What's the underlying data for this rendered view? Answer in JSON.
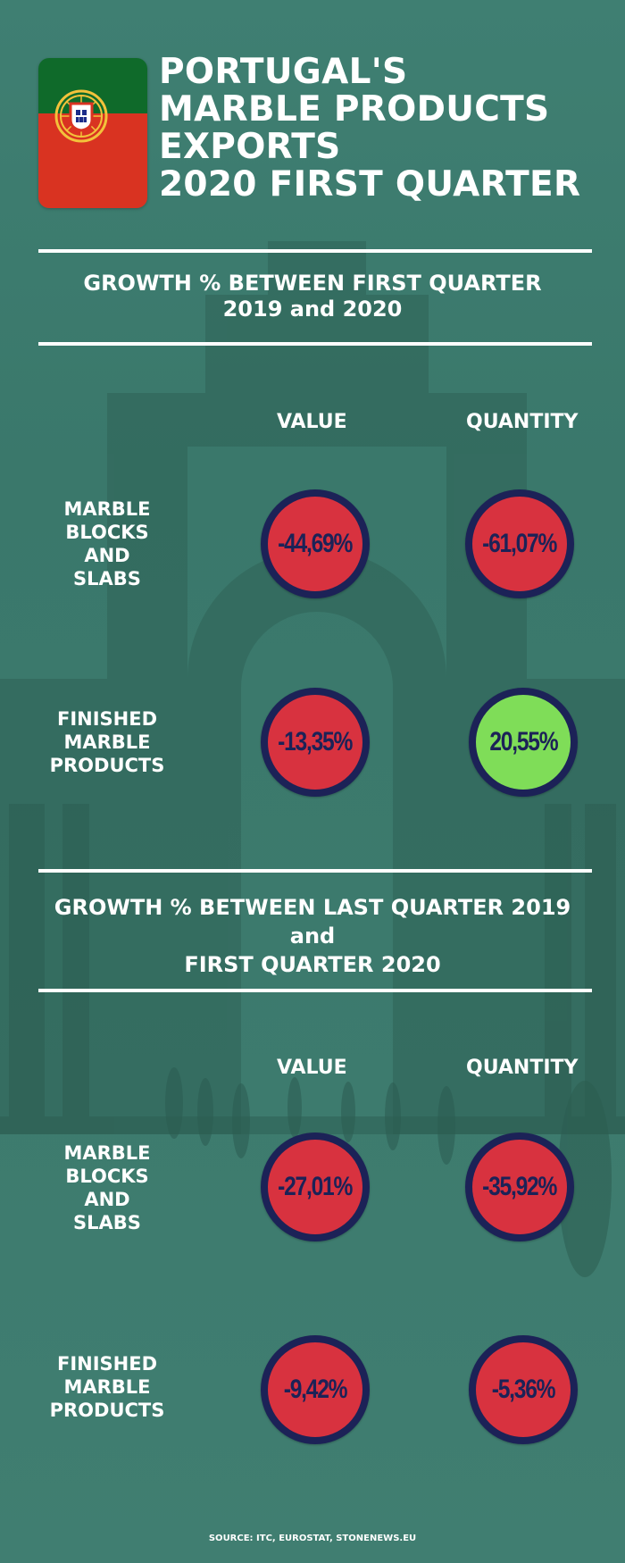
{
  "title_lines": [
    "PORTUGAL'S",
    "MARBLE PRODUCTS",
    "EXPORTS",
    "2020 FIRST QUARTER"
  ],
  "section1": {
    "heading_lines": [
      "GROWTH % BETWEEN FIRST QUARTER",
      "2019 and 2020"
    ],
    "col_value": "VALUE",
    "col_quantity": "QUANTITY",
    "rows": [
      {
        "label_lines": [
          "MARBLE",
          "BLOCKS",
          "AND",
          "SLABS"
        ],
        "value": "-44,69%",
        "quantity": "-61,07%"
      },
      {
        "label_lines": [
          "FINISHED",
          "MARBLE",
          "PRODUCTS"
        ],
        "value": "-13,35%",
        "quantity": "20,55%"
      }
    ]
  },
  "section2": {
    "heading_lines": [
      "GROWTH % BETWEEN LAST QUARTER 2019",
      "and",
      "FIRST QUARTER 2020"
    ],
    "col_value": "VALUE",
    "col_quantity": "QUANTITY",
    "rows": [
      {
        "label_lines": [
          "MARBLE",
          "BLOCKS",
          "AND",
          "SLABS"
        ],
        "value": "-27,01%",
        "quantity": "-35,92%"
      },
      {
        "label_lines": [
          "FINISHED",
          "MARBLE",
          "PRODUCTS"
        ],
        "value": "-9,42%",
        "quantity": "-5,36%"
      }
    ]
  },
  "source": "SOURCE: ITC, EUROSTAT, STONENEWS.EU",
  "colors": {
    "background": "#3c7a6d",
    "negative_fill": "#d8323f",
    "positive_fill": "#7fdd58",
    "ring": "#1c2257",
    "flag_green": "#0f6a2a",
    "flag_red": "#d93321"
  },
  "icons": {
    "flag": "portugal-flag-icon"
  }
}
